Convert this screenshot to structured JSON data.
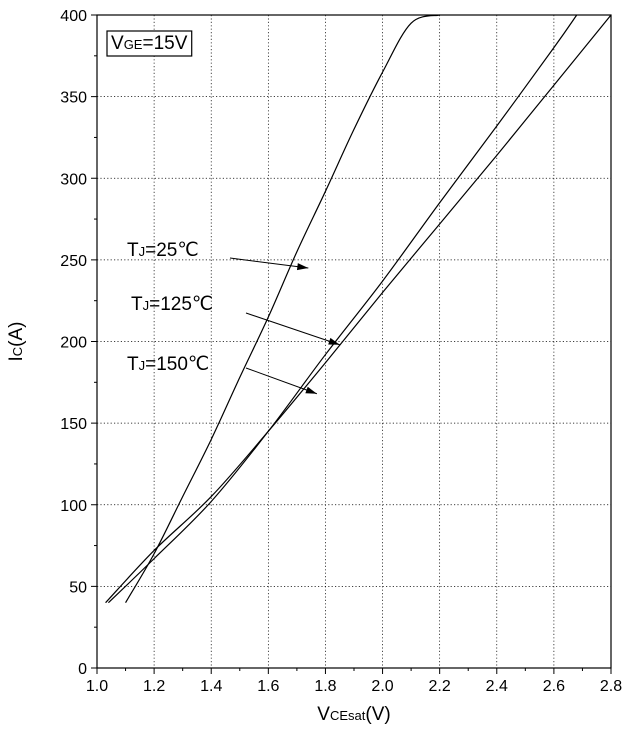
{
  "chart_data": {
    "type": "line",
    "xlabel": {
      "main": "V",
      "sub": "CEsat",
      "tail": "(V)"
    },
    "ylabel": {
      "main": "I",
      "sub": "C",
      "tail": "(A)"
    },
    "xlim": [
      1.0,
      2.8
    ],
    "ylim": [
      0,
      400
    ],
    "x_ticks": [
      "1.0",
      "1.2",
      "1.4",
      "1.6",
      "1.8",
      "2.0",
      "2.2",
      "2.4",
      "2.6",
      "2.8"
    ],
    "y_ticks": [
      "0",
      "50",
      "100",
      "150",
      "200",
      "250",
      "300",
      "350",
      "400"
    ],
    "grid": true,
    "condition_box": {
      "main": "V",
      "sub": "GE",
      "tail": "=15V"
    },
    "series": [
      {
        "name": "TJ=25℃",
        "x": [
          1.1,
          1.2,
          1.3,
          1.4,
          1.5,
          1.6,
          1.7,
          1.8,
          1.9,
          2.0,
          2.1,
          2.2
        ],
        "y": [
          40,
          70,
          105,
          140,
          178,
          215,
          255,
          292,
          330,
          365,
          395,
          400
        ]
      },
      {
        "name": "TJ=125℃",
        "x": [
          1.04,
          1.2,
          1.4,
          1.6,
          1.8,
          2.0,
          2.2,
          2.4,
          2.6,
          2.68
        ],
        "y": [
          40,
          67,
          102,
          145,
          192,
          237,
          285,
          332,
          380,
          400
        ]
      },
      {
        "name": "TJ=150℃",
        "x": [
          1.03,
          1.2,
          1.4,
          1.6,
          1.8,
          2.0,
          2.2,
          2.4,
          2.6,
          2.8
        ],
        "y": [
          40,
          72,
          105,
          145,
          187,
          230,
          272,
          314,
          357,
          400
        ]
      }
    ],
    "annotations": [
      {
        "main": "T",
        "sub": "J",
        "tail": "=25℃",
        "series": 0
      },
      {
        "main": "T",
        "sub": "J",
        "tail": "=125℃",
        "series": 1
      },
      {
        "main": "T",
        "sub": "J",
        "tail": "=150℃",
        "series": 2
      }
    ]
  }
}
